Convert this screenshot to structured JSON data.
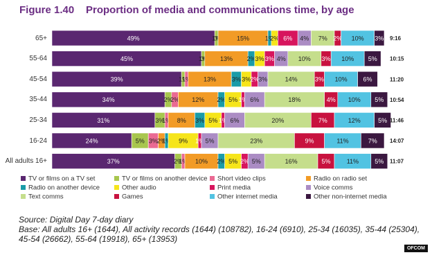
{
  "chart_data": {
    "type": "stacked-bar-horizontal",
    "figure_label": "Figure 1.40",
    "title": "Proportion of media and communications time, by age",
    "categories": [
      "65+",
      "55-64",
      "45-54",
      "35-44",
      "25-34",
      "16-24",
      "All adults 16+"
    ],
    "total_time_labels": [
      "9:16",
      "10:15",
      "11:20",
      "10:54",
      "11:46",
      "14:07",
      "11:07"
    ],
    "xlim": [
      0,
      100
    ],
    "series": [
      {
        "name": "TV or films on a TV set",
        "color": "#5a2770",
        "values": [
          49,
          45,
          39,
          34,
          31,
          24,
          37
        ],
        "value_labels": [
          "49%",
          "45%",
          "39%",
          "34%",
          "31%",
          "24%",
          "37%"
        ]
      },
      {
        "name": "TV or films on another device",
        "color": "#a8c64e",
        "values": [
          1,
          1,
          1,
          2,
          3,
          5,
          2
        ],
        "value_labels": [
          "1%",
          "1%",
          "1%",
          "2%",
          "3%",
          "5%",
          "2%"
        ]
      },
      {
        "name": "Short video clips",
        "color": "#ea6a93",
        "values": [
          0,
          0,
          1,
          2,
          1,
          3,
          1
        ],
        "value_labels": [
          "0%",
          "0%",
          "1%",
          "2%",
          "1%",
          "3%",
          "1%"
        ]
      },
      {
        "name": "Radio on radio set",
        "color": "#f29b26",
        "values": [
          15,
          13,
          13,
          12,
          8,
          2,
          10
        ],
        "value_labels": [
          "15%",
          "13%",
          "13%",
          "12%",
          "8%",
          "2%",
          "10%"
        ]
      },
      {
        "name": "Radio on another device",
        "color": "#1a9ca8",
        "values": [
          1,
          2,
          3,
          2,
          3,
          1,
          2
        ],
        "value_labels": [
          "1%",
          "2%",
          "3%",
          "2%",
          "3%",
          "1%",
          "2%"
        ]
      },
      {
        "name": "Other audio",
        "color": "#f6e51b",
        "values": [
          2,
          3,
          3,
          5,
          5,
          9,
          5
        ],
        "value_labels": [
          "2%",
          "3%",
          "3%",
          "5%",
          "5%",
          "9%",
          "5%"
        ]
      },
      {
        "name": "Print media",
        "color": "#d7155d",
        "values": [
          6,
          3,
          2,
          1,
          1,
          1,
          2
        ],
        "value_labels": [
          "6%",
          "3%",
          "2%",
          "1%",
          "1%",
          "1%",
          "2%"
        ]
      },
      {
        "name": "Voice comms",
        "color": "#ab8cc4",
        "values": [
          4,
          4,
          3,
          6,
          6,
          5,
          5
        ],
        "value_labels": [
          "4%",
          "4%",
          "3%",
          "6%",
          "6%",
          "5%",
          "5%"
        ]
      },
      {
        "name": "Text comms",
        "color": "#c5de8c",
        "values": [
          7,
          10,
          14,
          18,
          20,
          23,
          16
        ],
        "value_labels": [
          "7%",
          "10%",
          "14%",
          "18%",
          "20%",
          "23%",
          "16%"
        ]
      },
      {
        "name": "Games",
        "color": "#c8123f",
        "values": [
          2,
          3,
          3,
          4,
          7,
          9,
          5
        ],
        "value_labels": [
          "2%",
          "3%",
          "3%",
          "4%",
          "7%",
          "9%",
          "5%"
        ]
      },
      {
        "name": "Other internet media",
        "color": "#52c3e2",
        "values": [
          10,
          10,
          10,
          10,
          12,
          11,
          11
        ],
        "value_labels": [
          "10%",
          "10%",
          "10%",
          "10%",
          "12%",
          "11%",
          "11%"
        ]
      },
      {
        "name": "Other non-internet media",
        "color": "#3b1840",
        "values": [
          3,
          5,
          6,
          5,
          5,
          7,
          5
        ],
        "value_labels": [
          "3%",
          "5%",
          "6%",
          "5%",
          "5%",
          "7%",
          "5%"
        ]
      }
    ],
    "source": "Source: Digital Day 7-day diary",
    "base": "Base:  All adults 16+ (1644), All activity records (1644) (108782), 16-24 (6910), 25-34 (16035), 35-44 (25304), 45-54 (26662), 55-64 (19918), 65+ (13953)",
    "logo": "OFCOM"
  }
}
